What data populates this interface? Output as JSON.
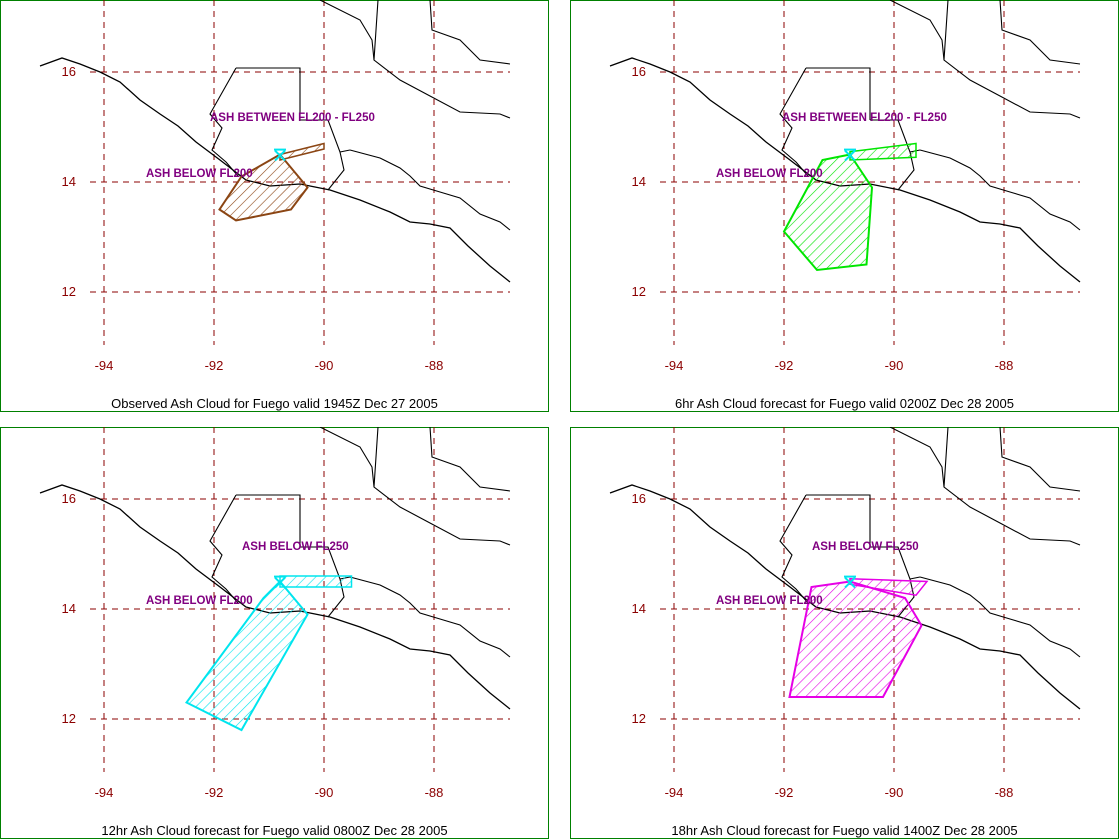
{
  "ticks": {
    "lat": [
      "16",
      "14",
      "12"
    ],
    "lon": [
      "-94",
      "-92",
      "-90",
      "-88"
    ]
  },
  "colors": {
    "frame": "#008000",
    "grid": "#8b0000",
    "coast": "#000000",
    "volcano": "#00e5ee",
    "label": "#800080"
  },
  "panels": [
    {
      "caption": "Observed Ash Cloud for Fuego valid 1945Z Dec 27 2005",
      "color": "#8b4513",
      "labels": {
        "upper": "ASH BETWEEN FL200 - FL250",
        "lower": "ASH BELOW FL200"
      },
      "polygon": [
        [
          -91.9,
          13.5
        ],
        [
          -91.6,
          13.3
        ],
        [
          -90.6,
          13.5
        ],
        [
          -90.3,
          13.9
        ],
        [
          -90.8,
          14.5
        ],
        [
          -91.5,
          14.1
        ]
      ],
      "band": [
        [
          -90.8,
          14.5
        ],
        [
          -90.0,
          14.7
        ],
        [
          -90.0,
          14.6
        ],
        [
          -90.8,
          14.4
        ]
      ]
    },
    {
      "caption": "6hr Ash Cloud forecast for Fuego valid 0200Z Dec 28 2005",
      "color": "#00e600",
      "labels": {
        "upper": "ASH BETWEEN FL200 - FL250",
        "lower": "ASH BELOW FL200"
      },
      "polygon": [
        [
          -92.0,
          13.1
        ],
        [
          -91.4,
          12.4
        ],
        [
          -90.5,
          12.5
        ],
        [
          -90.4,
          13.9
        ],
        [
          -90.8,
          14.5
        ],
        [
          -91.3,
          14.4
        ]
      ],
      "band": [
        [
          -90.8,
          14.55
        ],
        [
          -89.6,
          14.7
        ],
        [
          -89.6,
          14.45
        ],
        [
          -90.8,
          14.4
        ]
      ]
    },
    {
      "caption": "12hr Ash Cloud forecast for Fuego valid 0800Z Dec 28 2005",
      "color": "#00e5ee",
      "labels": {
        "upper": "ASH BELOW FL250",
        "lower": "ASH BELOW FL200"
      },
      "polygon": [
        [
          -92.5,
          12.3
        ],
        [
          -91.5,
          11.8
        ],
        [
          -90.3,
          13.9
        ],
        [
          -90.8,
          14.5
        ],
        [
          -91.1,
          14.2
        ]
      ],
      "band": [
        [
          -90.8,
          14.6
        ],
        [
          -89.5,
          14.6
        ],
        [
          -89.5,
          14.4
        ],
        [
          -90.8,
          14.4
        ]
      ]
    },
    {
      "caption": "18hr Ash Cloud forecast for Fuego valid 1400Z Dec 28 2005",
      "color": "#e600e6",
      "labels": {
        "upper": "ASH BELOW FL250",
        "lower": "ASH BELOW FL200"
      },
      "polygon": [
        [
          -91.9,
          12.4
        ],
        [
          -90.2,
          12.4
        ],
        [
          -89.5,
          13.7
        ],
        [
          -89.8,
          14.2
        ],
        [
          -90.8,
          14.5
        ],
        [
          -91.5,
          14.4
        ]
      ],
      "band": [
        [
          -90.8,
          14.55
        ],
        [
          -89.4,
          14.5
        ],
        [
          -89.6,
          14.25
        ],
        [
          -90.8,
          14.45
        ]
      ]
    }
  ]
}
